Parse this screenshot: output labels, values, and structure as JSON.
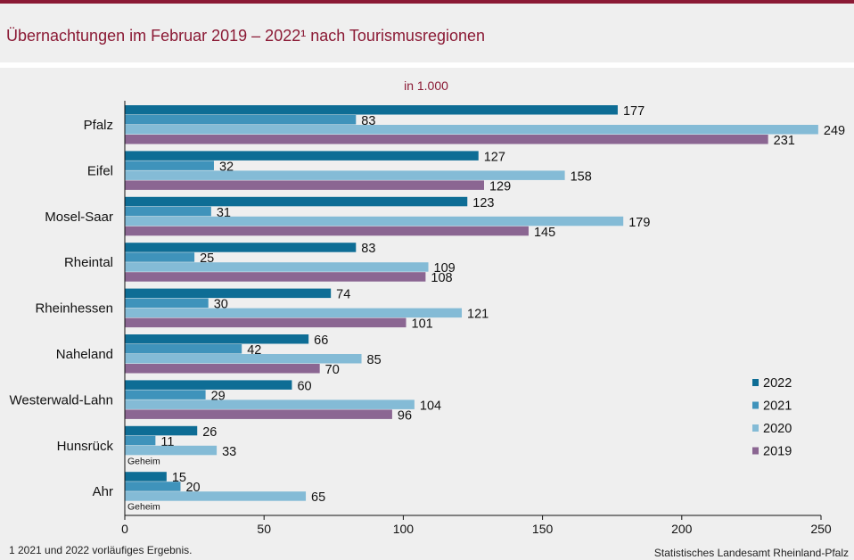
{
  "header": {
    "title": "Übernachtungen im Februar 2019 – 2022¹ nach Tourismusregionen"
  },
  "footer": {
    "footnote": "1 2021 und 2022 vorläufiges  Ergebnis.",
    "source": "Statistisches Landesamt Rheinland-Pfalz"
  },
  "colors": {
    "2022": "#0e6d95",
    "2021": "#3f93bb",
    "2020": "#84bbd6",
    "2019": "#8b6692"
  },
  "chart_data": {
    "type": "bar",
    "orientation": "horizontal",
    "title": "Übernachtungen im Februar 2019 – 2022¹ nach Tourismusregionen",
    "unit_label": "in 1.000",
    "categories": [
      "Pfalz",
      "Eifel",
      "Mosel-Saar",
      "Rheintal",
      "Rheinhessen",
      "Naheland",
      "Westerwald-Lahn",
      "Hunsrück",
      "Ahr"
    ],
    "series": [
      {
        "name": "2022",
        "values": [
          177,
          127,
          123,
          83,
          74,
          66,
          60,
          26,
          15
        ]
      },
      {
        "name": "2021",
        "values": [
          83,
          32,
          31,
          25,
          30,
          42,
          29,
          11,
          20
        ]
      },
      {
        "name": "2020",
        "values": [
          249,
          158,
          179,
          109,
          121,
          85,
          104,
          33,
          65
        ]
      },
      {
        "name": "2019",
        "values": [
          231,
          129,
          145,
          108,
          101,
          70,
          96,
          null,
          null
        ]
      }
    ],
    "missing_label": "Geheim",
    "xlim": [
      0,
      250
    ],
    "xticks": [
      0,
      50,
      100,
      150,
      200,
      250
    ],
    "legend_position": "right",
    "grid": false
  }
}
